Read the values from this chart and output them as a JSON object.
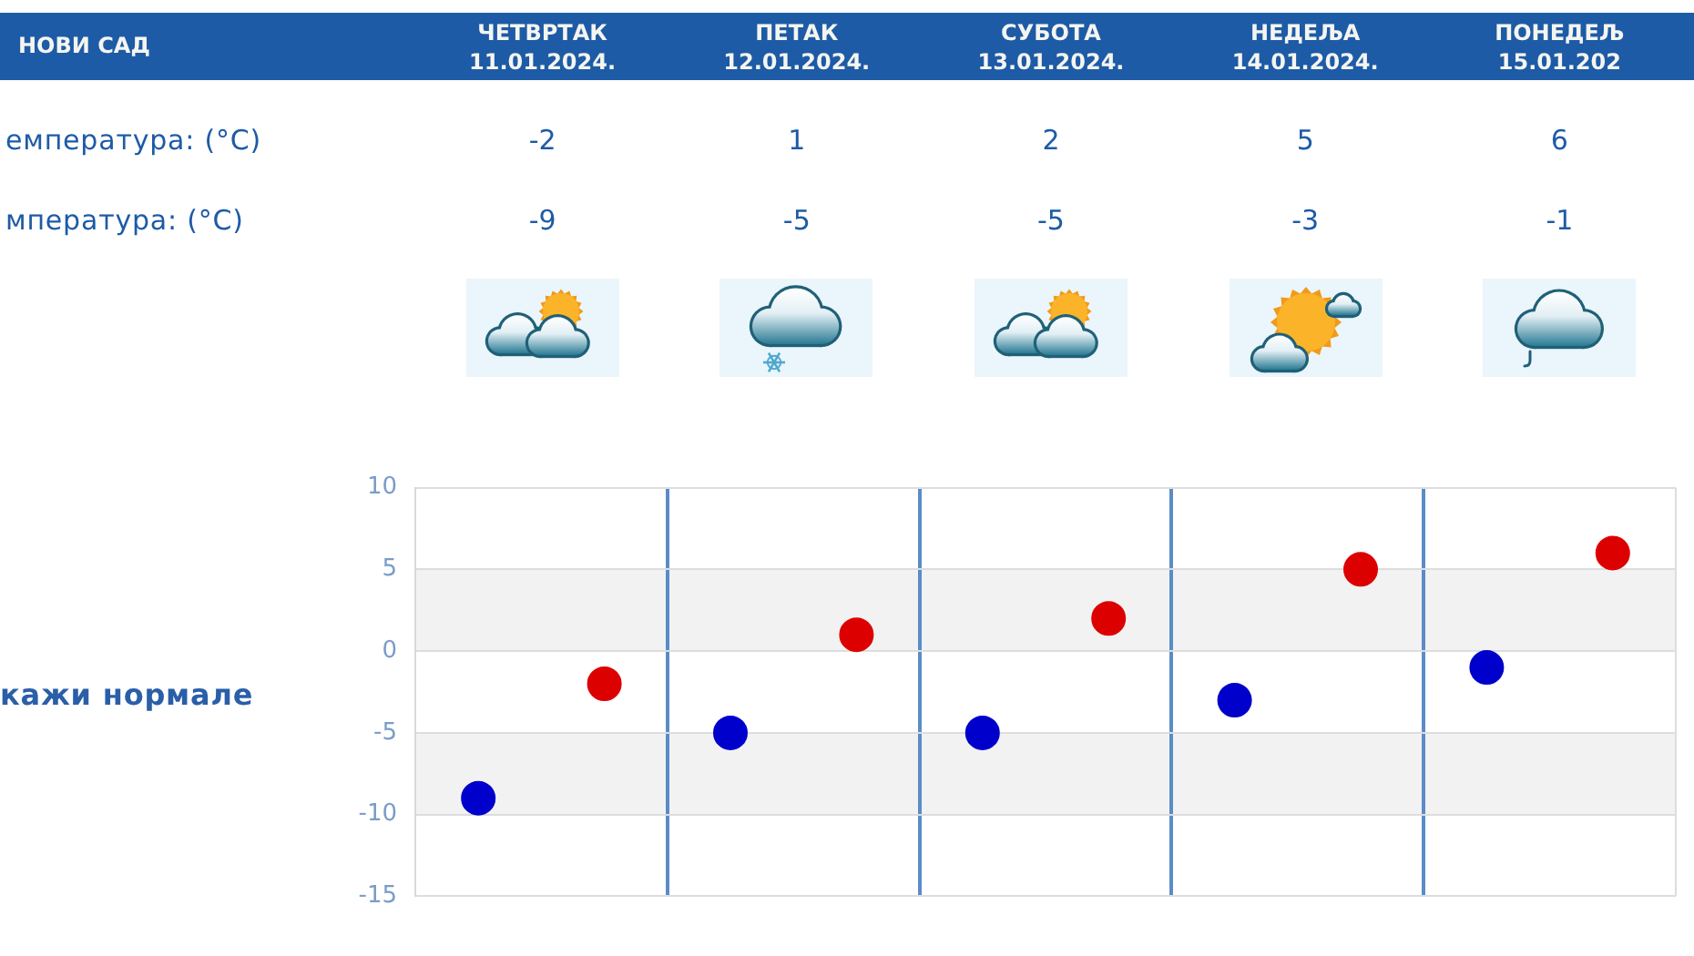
{
  "chart_data": {
    "type": "scatter",
    "title": "НОВИ САД",
    "categories": [
      null,
      null,
      null,
      null,
      null
    ],
    "series": [
      {
        "color": "#dd0000",
        "values": [
          -2,
          1,
          2,
          5,
          6
        ]
      },
      {
        "color": "#0000cc",
        "values": [
          -9,
          -5,
          -5,
          -3,
          -1
        ]
      }
    ],
    "ylim": [
      -15,
      10
    ],
    "yticks": [
      -15,
      -10,
      -5,
      0,
      5,
      10
    ],
    "grid": true,
    "marker": "circle",
    "data_labels": true,
    "bands": [
      {
        "axis": "y",
        "from": 0,
        "to": 5,
        "color": "#f2f2f2"
      },
      {
        "axis": "y",
        "from": -10,
        "to": -5,
        "color": "#f2f2f2"
      }
    ],
    "annotations": [
      "ЧЕТВРТАК 11.01.2024.",
      "ПЕТАК 12.01.2024.",
      "СУБОТА 13.01.2024.",
      "НЕДЕЉА 14.01.2024.",
      "ПОНЕДЕЉ 15.01.202",
      "емпература: (°C)",
      "мпература: (°C)",
      "кажи нормале"
    ]
  }
}
